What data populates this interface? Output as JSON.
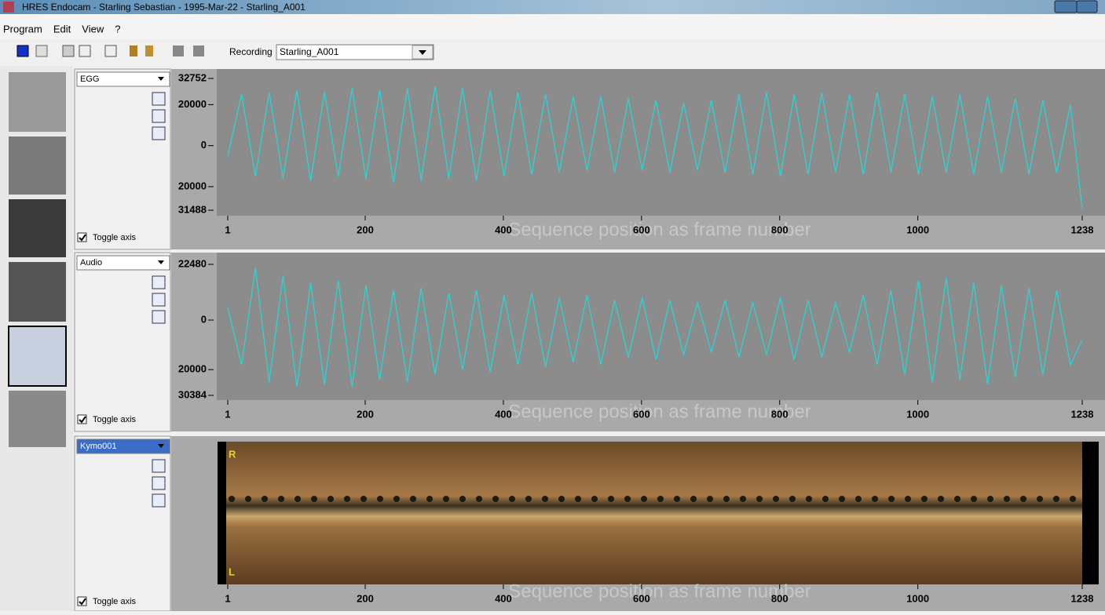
{
  "window": {
    "title": "HRES Endocam - Starling Sebastian - 1995-Mar-22 - Starling_A001"
  },
  "menu": [
    "Program",
    "Edit",
    "View",
    "?"
  ],
  "toolbar": {
    "recording_label": "Recording",
    "recording": "Starling_A001"
  },
  "chart_data": [
    {
      "type": "line",
      "selector": "EGG",
      "toggle": "Toggle axis",
      "xlabel": "Sequence position as frame number",
      "color": "#2ad4d4",
      "xlim": [
        1,
        1238
      ],
      "xticks": [
        1,
        200,
        400,
        600,
        800,
        1000,
        1238
      ],
      "ylim": [
        -31488,
        32752
      ],
      "yticks": [
        32752,
        20000,
        0,
        {
          "value": -20000,
          "label": "20000"
        },
        {
          "value": -31488,
          "label": "31488"
        }
      ],
      "x": [
        1,
        21,
        41,
        61,
        81,
        101,
        121,
        141,
        161,
        181,
        201,
        221,
        241,
        261,
        281,
        301,
        321,
        341,
        361,
        381,
        401,
        421,
        441,
        461,
        481,
        501,
        521,
        541,
        561,
        581,
        601,
        621,
        641,
        661,
        681,
        701,
        721,
        741,
        761,
        781,
        801,
        821,
        841,
        861,
        881,
        901,
        921,
        941,
        961,
        981,
        1001,
        1021,
        1041,
        1061,
        1081,
        1101,
        1121,
        1141,
        1161,
        1181,
        1201,
        1221,
        1238
      ],
      "values": [
        -5000,
        25000,
        -15000,
        26000,
        -16000,
        27000,
        -17000,
        26000,
        -15000,
        28000,
        -16000,
        27000,
        -18000,
        28000,
        -17000,
        29000,
        -16000,
        28000,
        -17000,
        27000,
        -15000,
        26000,
        -14000,
        25000,
        -13000,
        24000,
        -12000,
        24000,
        -13000,
        23000,
        -12000,
        22000,
        -13000,
        21000,
        -12000,
        22000,
        -13000,
        25000,
        -14000,
        26000,
        -15000,
        25000,
        -14000,
        26000,
        -13000,
        25000,
        -14000,
        26000,
        -13000,
        25000,
        -14000,
        24000,
        -13000,
        25000,
        -14000,
        24000,
        -13000,
        23000,
        -14000,
        22000,
        -13000,
        20000,
        -31000
      ]
    },
    {
      "type": "line",
      "selector": "Audio",
      "toggle": "Toggle axis",
      "xlabel": "Sequence position as frame number",
      "color": "#2ad4d4",
      "xlim": [
        1,
        1238
      ],
      "xticks": [
        1,
        200,
        400,
        600,
        800,
        1000,
        1238
      ],
      "ylim": [
        -30384,
        22480
      ],
      "yticks": [
        22480,
        0,
        {
          "value": -20000,
          "label": "20000"
        },
        {
          "value": -30384,
          "label": "30384"
        }
      ],
      "x": [
        1,
        21,
        41,
        61,
        81,
        101,
        121,
        141,
        161,
        181,
        201,
        221,
        241,
        261,
        281,
        301,
        321,
        341,
        361,
        381,
        401,
        421,
        441,
        461,
        481,
        501,
        521,
        541,
        561,
        581,
        601,
        621,
        641,
        661,
        681,
        701,
        721,
        741,
        761,
        781,
        801,
        821,
        841,
        861,
        881,
        901,
        921,
        941,
        961,
        981,
        1001,
        1021,
        1041,
        1061,
        1081,
        1101,
        1121,
        1141,
        1161,
        1181,
        1201,
        1221,
        1238
      ],
      "values": [
        5000,
        -18000,
        21000,
        -25000,
        18000,
        -27000,
        15000,
        -26000,
        16000,
        -27000,
        14000,
        -24000,
        12000,
        -25000,
        13000,
        -22000,
        11000,
        -20000,
        12000,
        -21000,
        10000,
        -18000,
        11000,
        -19000,
        9000,
        -17000,
        10000,
        -18000,
        8000,
        -15000,
        9000,
        -16000,
        8000,
        -14000,
        7000,
        -13000,
        8000,
        -15000,
        7000,
        -14000,
        9000,
        -16000,
        8000,
        -15000,
        7000,
        -13000,
        10000,
        -18000,
        12000,
        -22000,
        16000,
        -25000,
        17000,
        -24000,
        15000,
        -26000,
        14000,
        -23000,
        13000,
        -22000,
        12000,
        -18000,
        -8000
      ]
    },
    {
      "type": "image",
      "selector": "Kymo001",
      "toggle": "Toggle axis",
      "xlabel": "Sequence position as frame number",
      "xlim": [
        1,
        1238
      ],
      "xticks": [
        1,
        200,
        400,
        600,
        800,
        1000,
        1238
      ],
      "top_label": "R",
      "bottom_label": "L"
    }
  ]
}
